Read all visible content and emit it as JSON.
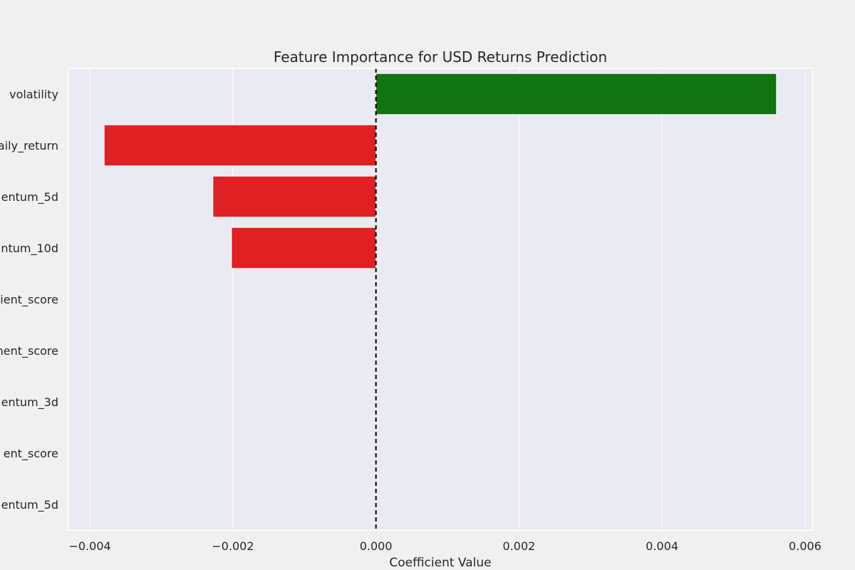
{
  "chart_data": {
    "type": "bar",
    "orientation": "horizontal",
    "title": "Feature Importance for USD Returns Prediction",
    "xlabel": "Coefficient Value",
    "ylabel": "",
    "categories": [
      "volatility",
      "aily_return",
      "entum_5d",
      "ntum_10d",
      "ient_score",
      "nent_score",
      "entum_3d",
      "ent_score",
      "entum_5d"
    ],
    "values": [
      0.0056,
      -0.0038,
      -0.00228,
      -0.00202,
      0,
      0,
      0,
      0,
      0
    ],
    "xlim": [
      -0.0043,
      0.0061
    ],
    "xticks": [
      -0.004,
      -0.002,
      0.0,
      0.002,
      0.004,
      0.006
    ],
    "xtick_labels": [
      "−0.004",
      "−0.002",
      "0.000",
      "0.002",
      "0.004",
      "0.006"
    ],
    "grid": true,
    "reference_line": 0,
    "colors": {
      "positive": "#117311",
      "negative": "#e02022",
      "plot_background": "#eaeaf2",
      "figure_background": "#f0f0f0",
      "grid": "#ffffff",
      "reference_line": "#000000"
    }
  }
}
